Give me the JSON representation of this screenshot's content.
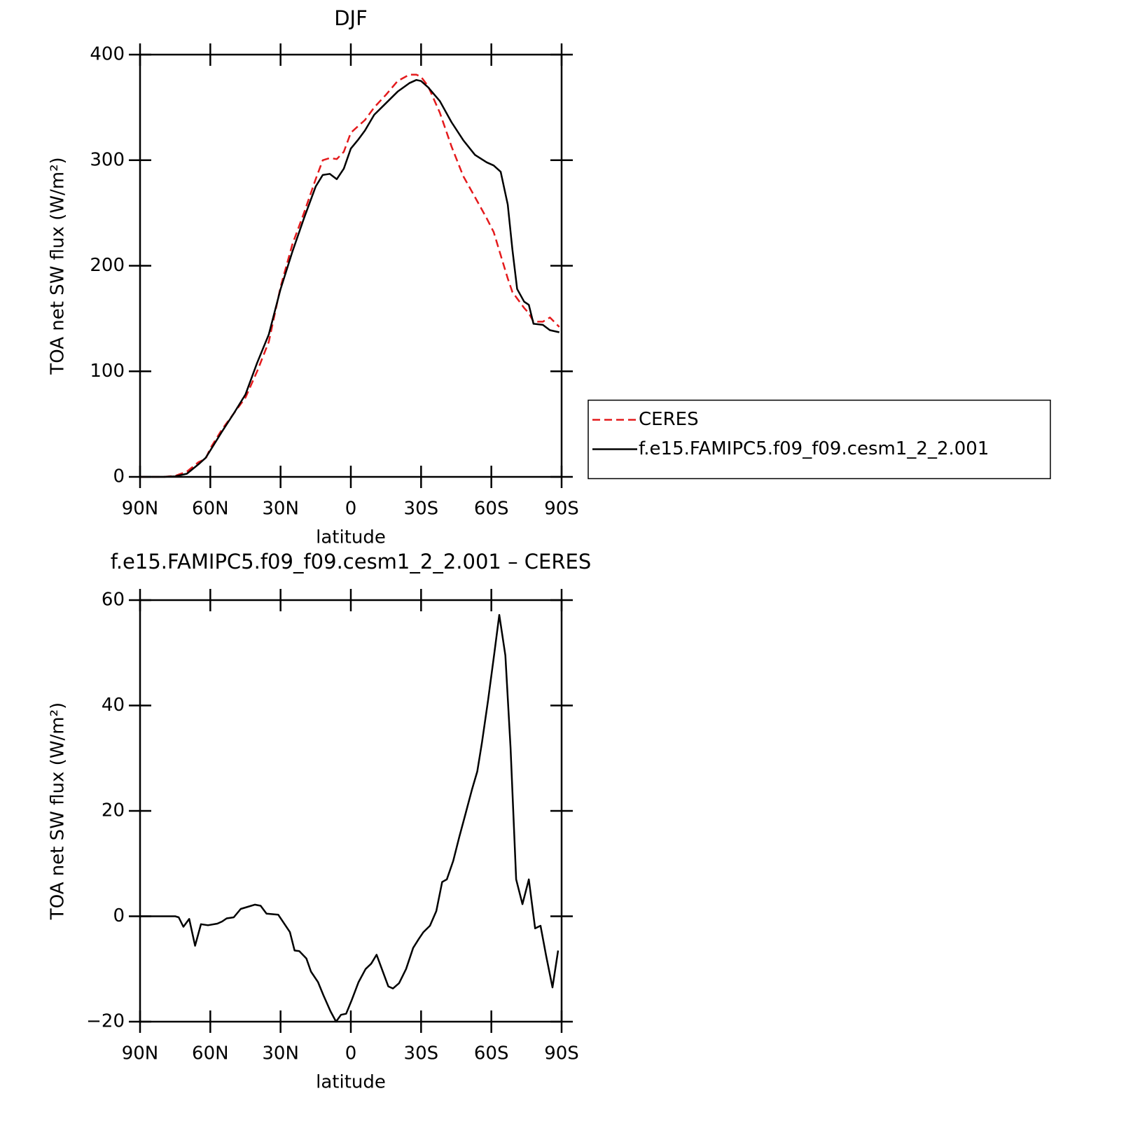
{
  "chart_data": [
    {
      "type": "line",
      "title": "DJF",
      "xlabel": "latitude",
      "ylabel": "TOA net SW flux (W/m²)",
      "x": [
        90,
        80,
        75,
        70,
        65,
        62,
        60,
        55,
        50,
        45,
        40,
        35,
        30,
        25,
        20,
        15,
        12,
        9,
        6,
        3,
        0,
        -3,
        -6,
        -10,
        -15,
        -20,
        -25,
        -28,
        -30,
        -33,
        -38,
        -43,
        -48,
        -53,
        -58,
        -61,
        -64,
        -67,
        -69,
        -71,
        -74,
        -76,
        -78,
        -82,
        -85,
        -89
      ],
      "series": [
        {
          "name": "CERES",
          "color": "#e41a1c",
          "dash": true,
          "values": [
            0,
            0,
            1,
            5,
            14,
            17,
            27,
            45,
            60,
            75,
            100,
            128,
            180,
            220,
            250,
            282,
            300,
            302,
            301,
            308,
            326,
            332,
            338,
            350,
            362,
            375,
            381,
            381,
            379,
            370,
            345,
            313,
            285,
            265,
            245,
            232,
            210,
            188,
            175,
            169,
            160,
            155,
            147,
            147,
            151,
            142
          ]
        },
        {
          "name": "f.e15.FAMIPC5.f09_f09.cesm1_2_2.001",
          "color": "#000000",
          "dash": false,
          "values": [
            0,
            0,
            0.5,
            3,
            12,
            18,
            25,
            43,
            60,
            78,
            108,
            135,
            178,
            213,
            245,
            275,
            286,
            287,
            282,
            292,
            311,
            319,
            328,
            343,
            354,
            365,
            373,
            376,
            375,
            369,
            356,
            336,
            319,
            305,
            298,
            295,
            289,
            258,
            215,
            178,
            166,
            163,
            145,
            144,
            139,
            137
          ]
        }
      ],
      "xlim": [
        90,
        -90
      ],
      "xticks": [
        {
          "value": 90,
          "label": "90N"
        },
        {
          "value": 60,
          "label": "60N"
        },
        {
          "value": 30,
          "label": "30N"
        },
        0,
        {
          "value": -30,
          "label": "30S"
        },
        {
          "value": -60,
          "label": "60S"
        },
        {
          "value": -90,
          "label": "90S"
        }
      ],
      "ylim": [
        0,
        400
      ],
      "yticks": [
        0,
        100,
        200,
        300,
        400
      ],
      "legend": "right"
    },
    {
      "type": "line",
      "title": "f.e15.FAMIPC5.f09_f09.cesm1_2_2.001 – CERES",
      "xlabel": "latitude",
      "ylabel": "TOA net SW flux (W/m²)",
      "x": [
        90,
        75,
        73.5,
        71.5,
        69,
        66.5,
        64,
        61,
        57,
        55,
        53,
        50,
        47,
        44,
        41,
        38.5,
        36,
        31,
        26,
        24,
        22,
        19,
        17,
        14,
        11.7,
        8.7,
        6.3,
        4.2,
        2,
        -0.3,
        -3.3,
        -6.3,
        -8.7,
        -11,
        -16,
        -18,
        -20.6,
        -23.6,
        -26.6,
        -29,
        -31,
        -33.8,
        -36.5,
        -39,
        -41,
        -43.7,
        -46.3,
        -48.7,
        -51.7,
        -54,
        -56,
        -58.6,
        -61.3,
        -63.4,
        -66,
        -68.2,
        -70.6,
        -73.3,
        -76,
        -78.7,
        -81,
        -83.4,
        -86.1,
        -88.5
      ],
      "series": [
        {
          "color": "#000000",
          "dash": false,
          "values": [
            0,
            0,
            -0.2,
            -2,
            -0.5,
            -5.6,
            -1.5,
            -1.7,
            -1.4,
            -1,
            -0.4,
            -0.2,
            1.4,
            1.8,
            2.2,
            2,
            0.5,
            0.3,
            -3,
            -6.5,
            -6.6,
            -8,
            -10.5,
            -12.5,
            -15,
            -18,
            -20,
            -18.7,
            -18.5,
            -16,
            -12.5,
            -10,
            -9,
            -7.3,
            -13.3,
            -13.7,
            -12.7,
            -10,
            -6,
            -4.3,
            -3,
            -1.8,
            1,
            6.5,
            7,
            10.5,
            15,
            19,
            24,
            27.5,
            33,
            41,
            50,
            57.2,
            49.5,
            32,
            7,
            2.3,
            7,
            -2.3,
            -1.8,
            -7.5,
            -13.5,
            -6.5
          ]
        }
      ],
      "xlim": [
        90,
        -90
      ],
      "xticks": [
        {
          "value": 90,
          "label": "90N"
        },
        {
          "value": 60,
          "label": "60N"
        },
        {
          "value": 30,
          "label": "30N"
        },
        0,
        {
          "value": -30,
          "label": "30S"
        },
        {
          "value": -60,
          "label": "60S"
        },
        {
          "value": -90,
          "label": "90S"
        }
      ],
      "ylim": [
        -20,
        60
      ],
      "yticks": [
        {
          "value": -20,
          "label": "−20"
        },
        0,
        20,
        40,
        60
      ]
    }
  ]
}
